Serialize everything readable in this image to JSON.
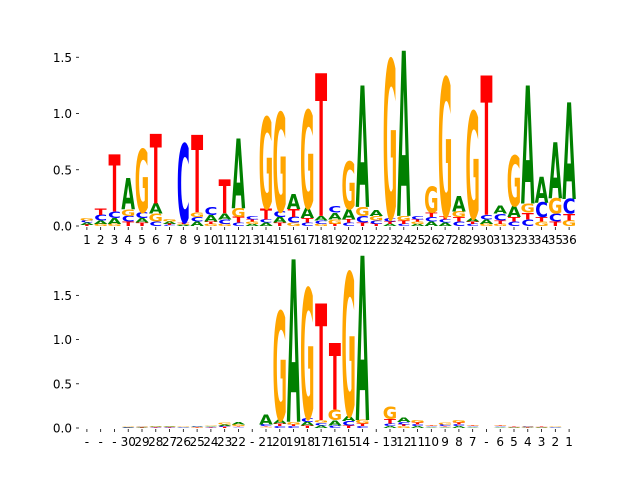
{
  "colors": {
    "A": "#008000",
    "C": "#0000ff",
    "G": "#ffa500",
    "T": "#ff0000"
  },
  "chart_data": [
    {
      "type": "sequence-logo",
      "ylim": [
        0,
        1.6
      ],
      "yticks": [
        "0.0",
        "0.5",
        "1.0",
        "1.5"
      ],
      "ytick_values": [
        0,
        0.5,
        1.0,
        1.5
      ],
      "positions": [
        "1",
        "2",
        "3",
        "4",
        "5",
        "6",
        "7",
        "8",
        "9",
        "10",
        "11",
        "12",
        "13",
        "14",
        "15",
        "16",
        "17",
        "18",
        "19",
        "20",
        "21",
        "22",
        "23",
        "24",
        "25",
        "26",
        "27",
        "28",
        "29",
        "30",
        "31",
        "32",
        "33",
        "34",
        "35",
        "36"
      ],
      "columns": [
        {
          "A": 0.02,
          "C": 0.02,
          "G": 0.02,
          "T": 0.01
        },
        {
          "A": 0.03,
          "C": 0.05,
          "G": 0.02,
          "T": 0.06
        },
        {
          "A": 0.05,
          "C": 0.06,
          "G": 0.02,
          "T": 0.51
        },
        {
          "A": 0.28,
          "C": 0.05,
          "G": 0.06,
          "T": 0.04
        },
        {
          "A": 0.04,
          "C": 0.05,
          "G": 0.56,
          "T": 0.03
        },
        {
          "A": 0.09,
          "C": 0.04,
          "G": 0.07,
          "T": 0.62
        },
        {
          "A": 0.02,
          "C": 0.01,
          "G": 0.02,
          "T": 0.01
        },
        {
          "A": 0.01,
          "C": 0.7,
          "G": 0.01,
          "T": 0.01
        },
        {
          "A": 0.04,
          "C": 0.04,
          "G": 0.04,
          "T": 0.69
        },
        {
          "A": 0.06,
          "C": 0.07,
          "G": 0.02,
          "T": 0.02
        },
        {
          "A": 0.05,
          "C": 0.04,
          "G": 0.02,
          "T": 0.3
        },
        {
          "A": 0.62,
          "C": 0.03,
          "G": 0.08,
          "T": 0.05
        },
        {
          "A": 0.02,
          "C": 0.03,
          "G": 0.02,
          "T": 0.02
        },
        {
          "A": 0.03,
          "C": 0.03,
          "G": 0.81,
          "T": 0.1
        },
        {
          "A": 0.05,
          "C": 0.05,
          "G": 0.88,
          "T": 0.03
        },
        {
          "A": 0.13,
          "C": 0.05,
          "G": 0.03,
          "T": 0.07
        },
        {
          "A": 0.09,
          "C": 0.03,
          "G": 0.87,
          "T": 0.04
        },
        {
          "A": 0.04,
          "C": 0.03,
          "G": 0.02,
          "T": 1.27
        },
        {
          "A": 0.06,
          "C": 0.06,
          "G": 0.04,
          "T": 0.02
        },
        {
          "A": 0.09,
          "C": 0.03,
          "G": 0.42,
          "T": 0.03
        },
        {
          "A": 1.08,
          "C": 0.06,
          "G": 0.08,
          "T": 0.03
        },
        {
          "A": 0.05,
          "C": 0.03,
          "G": 0.04,
          "T": 0.02
        },
        {
          "A": 0.02,
          "C": 0.03,
          "G": 1.41,
          "T": 0.02
        },
        {
          "A": 1.47,
          "C": 0.02,
          "G": 0.04,
          "T": 0.03
        },
        {
          "A": 0.02,
          "C": 0.03,
          "G": 0.02,
          "T": 0.02
        },
        {
          "A": 0.04,
          "C": 0.04,
          "G": 0.23,
          "T": 0.04
        },
        {
          "A": 0.03,
          "C": 0.03,
          "G": 1.23,
          "T": 0.03
        },
        {
          "A": 0.14,
          "C": 0.04,
          "G": 0.05,
          "T": 0.04
        },
        {
          "A": 0.03,
          "C": 0.02,
          "G": 0.95,
          "T": 0.02
        },
        {
          "A": 0.04,
          "C": 0.04,
          "G": 0.02,
          "T": 1.24
        },
        {
          "A": 0.07,
          "C": 0.06,
          "G": 0.02,
          "T": 0.03
        },
        {
          "A": 0.1,
          "C": 0.04,
          "G": 0.45,
          "T": 0.04
        },
        {
          "A": 1.05,
          "C": 0.06,
          "G": 0.08,
          "T": 0.06
        },
        {
          "A": 0.23,
          "C": 0.13,
          "G": 0.04,
          "T": 0.04
        },
        {
          "A": 0.5,
          "C": 0.07,
          "G": 0.14,
          "T": 0.04
        },
        {
          "A": 0.86,
          "C": 0.13,
          "G": 0.05,
          "T": 0.06
        }
      ]
    },
    {
      "type": "sequence-logo",
      "ylim": [
        0,
        1.9
      ],
      "yticks": [
        "0.0",
        "0.5",
        "1.0",
        "1.5"
      ],
      "ytick_values": [
        0,
        0.5,
        1.0,
        1.5
      ],
      "positions": [
        "-",
        "-",
        "-",
        "30",
        "29",
        "28",
        "27",
        "26",
        "25",
        "24",
        "23",
        "22",
        "-",
        "21",
        "20",
        "19",
        "18",
        "17",
        "16",
        "15",
        "14",
        "-",
        "13",
        "12",
        "11",
        "10",
        "9",
        "8",
        "7",
        "-",
        "6",
        "5",
        "4",
        "3",
        "2",
        "1"
      ],
      "columns": [
        {
          "A": 0.0,
          "C": 0.0,
          "G": 0.0,
          "T": 0.0
        },
        {
          "A": 0.0,
          "C": 0.0,
          "G": 0.0,
          "T": 0.0
        },
        {
          "A": 0.0,
          "C": 0.0,
          "G": 0.0,
          "T": 0.0
        },
        {
          "A": 0.005,
          "C": 0.004,
          "G": 0.005,
          "T": 0.004
        },
        {
          "A": 0.005,
          "C": 0.005,
          "G": 0.005,
          "T": 0.004
        },
        {
          "A": 0.006,
          "C": 0.005,
          "G": 0.006,
          "T": 0.004
        },
        {
          "A": 0.007,
          "C": 0.006,
          "G": 0.008,
          "T": 0.006
        },
        {
          "A": 0.004,
          "C": 0.004,
          "G": 0.004,
          "T": 0.003
        },
        {
          "A": 0.006,
          "C": 0.006,
          "G": 0.005,
          "T": 0.005
        },
        {
          "A": 0.009,
          "C": 0.008,
          "G": 0.01,
          "T": 0.008
        },
        {
          "A": 0.015,
          "C": 0.012,
          "G": 0.02,
          "T": 0.011
        },
        {
          "A": 0.03,
          "C": 0.01,
          "G": 0.02,
          "T": 0.01
        },
        {
          "A": 0.0,
          "C": 0.0,
          "G": 0.0,
          "T": 0.0
        },
        {
          "A": 0.11,
          "C": 0.02,
          "G": 0.01,
          "T": 0.01
        },
        {
          "A": 0.04,
          "C": 0.02,
          "G": 1.23,
          "T": 0.03
        },
        {
          "A": 1.84,
          "C": 0.02,
          "G": 0.03,
          "T": 0.02
        },
        {
          "A": 0.04,
          "C": 0.04,
          "G": 1.47,
          "T": 0.03
        },
        {
          "A": 0.03,
          "C": 0.03,
          "G": 0.03,
          "T": 1.32
        },
        {
          "A": 0.06,
          "C": 0.03,
          "G": 0.12,
          "T": 0.75
        },
        {
          "A": 0.06,
          "C": 0.05,
          "G": 1.62,
          "T": 0.03
        },
        {
          "A": 1.86,
          "C": 0.02,
          "G": 0.04,
          "T": 0.03
        },
        {
          "A": 0.0,
          "C": 0.0,
          "G": 0.0,
          "T": 0.0
        },
        {
          "A": 0.02,
          "C": 0.03,
          "G": 0.14,
          "T": 0.05
        },
        {
          "A": 0.05,
          "C": 0.03,
          "G": 0.02,
          "T": 0.02
        },
        {
          "A": 0.02,
          "C": 0.02,
          "G": 0.03,
          "T": 0.02
        },
        {
          "A": 0.01,
          "C": 0.01,
          "G": 0.01,
          "T": 0.01
        },
        {
          "A": 0.01,
          "C": 0.02,
          "G": 0.02,
          "T": 0.01
        },
        {
          "A": 0.02,
          "C": 0.02,
          "G": 0.03,
          "T": 0.02
        },
        {
          "A": 0.01,
          "C": 0.01,
          "G": 0.01,
          "T": 0.01
        },
        {
          "A": 0.0,
          "C": 0.0,
          "G": 0.0,
          "T": 0.0
        },
        {
          "A": 0.01,
          "C": 0.01,
          "G": 0.01,
          "T": 0.01
        },
        {
          "A": 0.004,
          "C": 0.004,
          "G": 0.004,
          "T": 0.004
        },
        {
          "A": 0.006,
          "C": 0.006,
          "G": 0.006,
          "T": 0.005
        },
        {
          "A": 0.004,
          "C": 0.004,
          "G": 0.004,
          "T": 0.004
        },
        {
          "A": 0.004,
          "C": 0.004,
          "G": 0.004,
          "T": 0.003
        },
        {
          "A": 0.003,
          "C": 0.003,
          "G": 0.003,
          "T": 0.003
        }
      ]
    }
  ]
}
